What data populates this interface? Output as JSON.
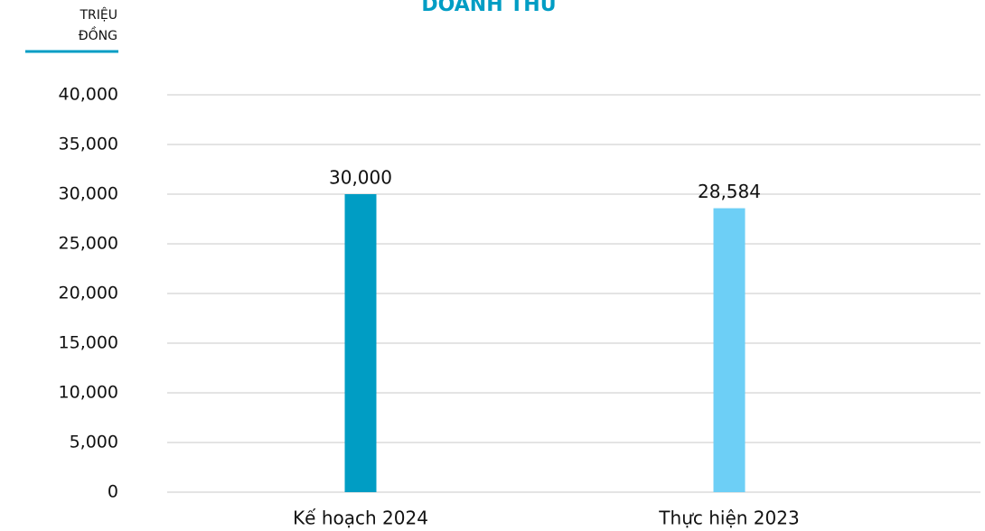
{
  "chart_data": {
    "type": "bar",
    "title": "DOANH THU",
    "unit_label": [
      "TRIỆU",
      "ĐỒNG"
    ],
    "categories": [
      "Kế hoạch 2024",
      "Thực hiện 2023"
    ],
    "values": [
      30000,
      28584
    ],
    "value_labels": [
      "30,000",
      "28,584"
    ],
    "colors": [
      "#009dc4",
      "#6dcff6"
    ],
    "ylim": [
      0,
      40000
    ],
    "yticks": [
      0,
      {
        "value": 5000,
        "label": "5,000"
      },
      {
        "value": 10000,
        "label": "10,000"
      },
      {
        "value": 15000,
        "label": "15,000"
      },
      {
        "value": 20000,
        "label": "20,000"
      },
      {
        "value": 25000,
        "label": "25,000"
      },
      {
        "value": 30000,
        "label": "30,000"
      },
      {
        "value": 35000,
        "label": "35,000"
      },
      {
        "value": 40000,
        "label": "40,000"
      }
    ],
    "grid": true
  }
}
